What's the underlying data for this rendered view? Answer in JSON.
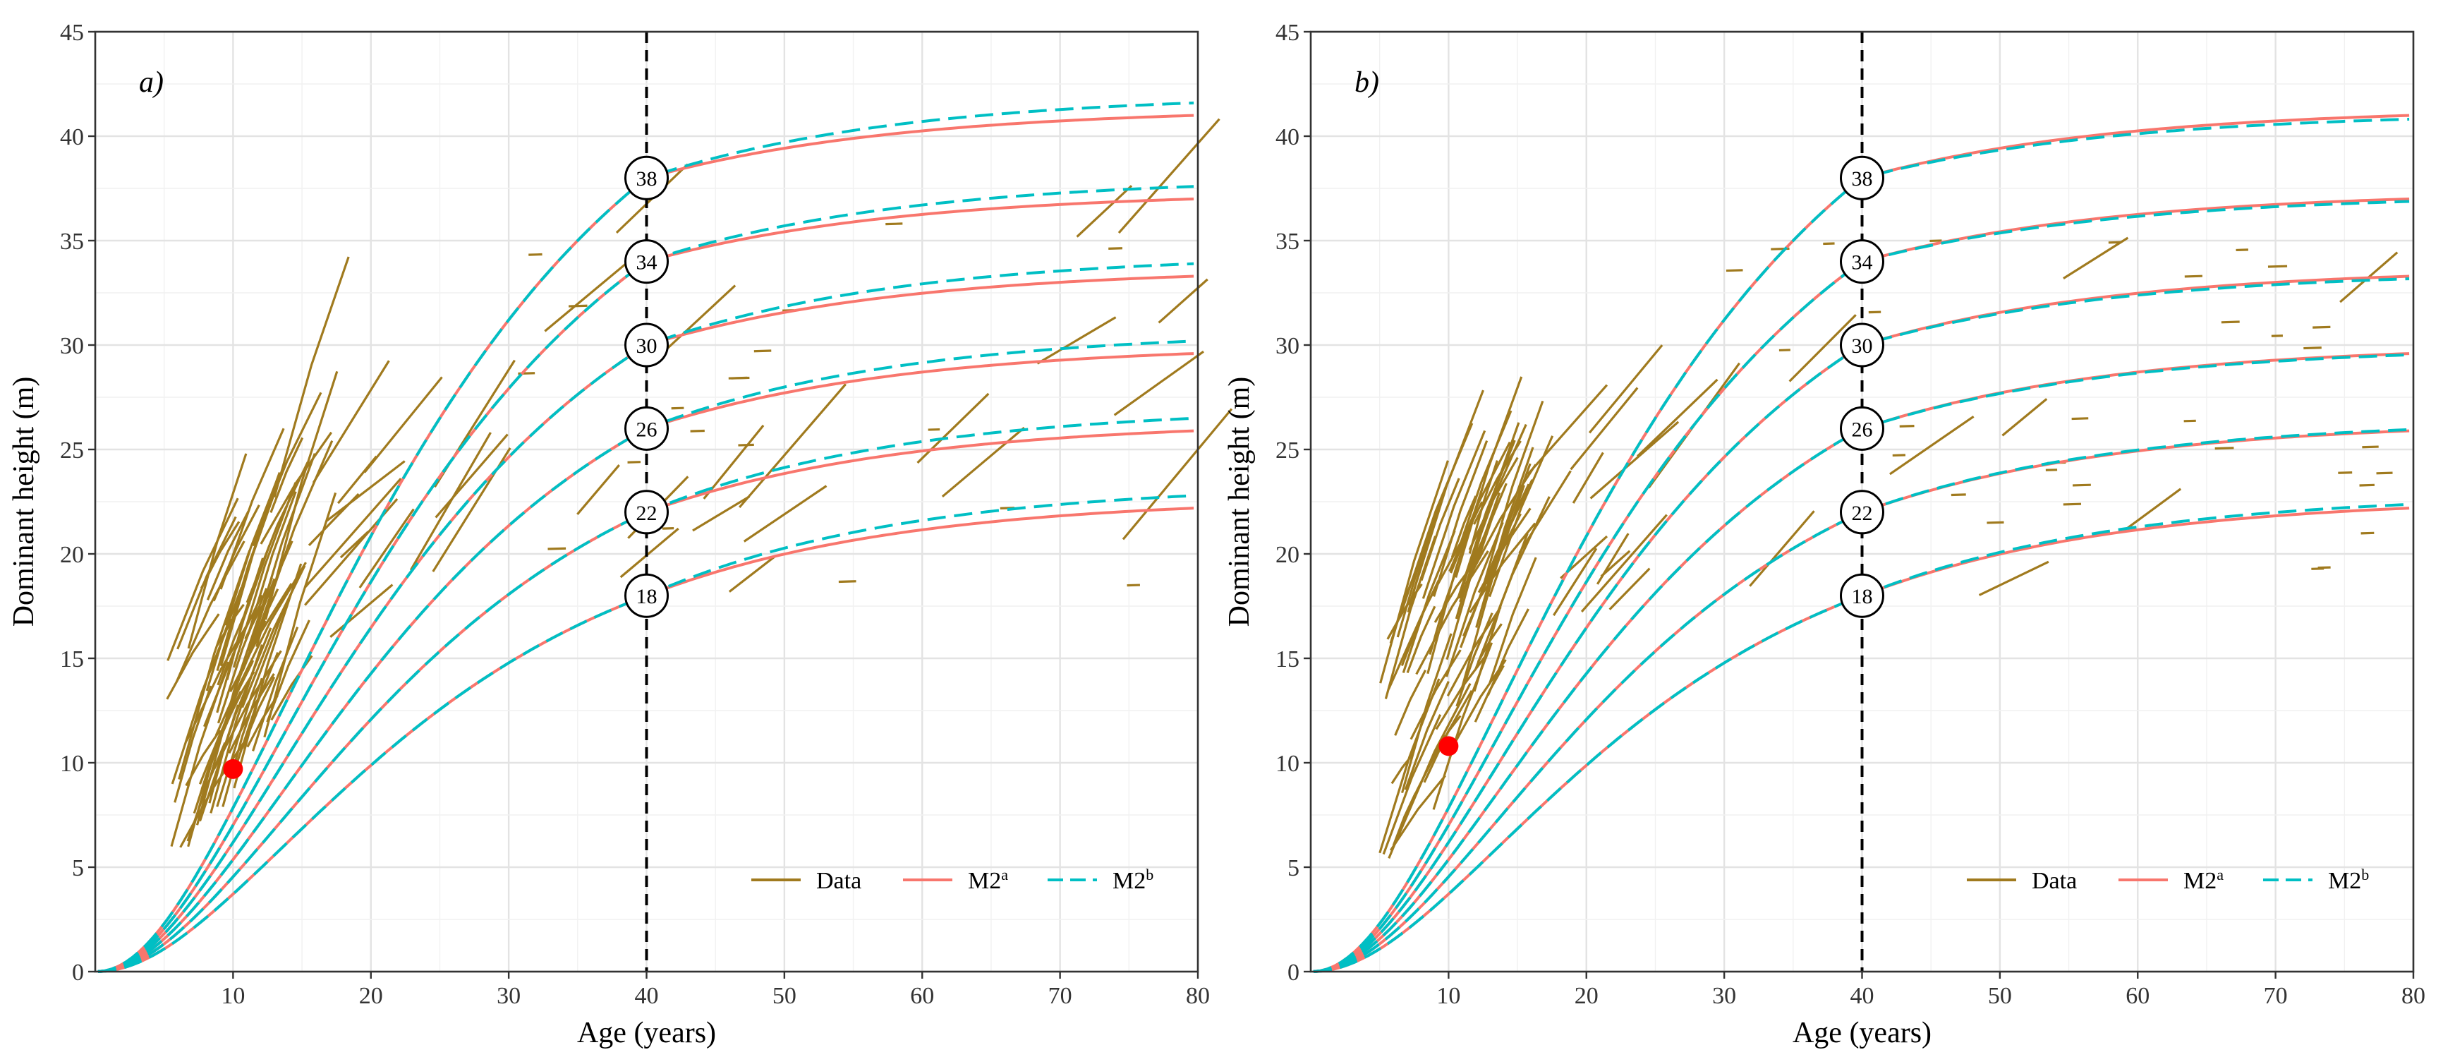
{
  "chart_data": [
    {
      "type": "line",
      "panel_label": "a)",
      "xlabel": "Age (years)",
      "ylabel": "Dominant height (m)",
      "xlim": [
        0,
        80
      ],
      "ylim": [
        0,
        45
      ],
      "x_ticks": [
        "10",
        "20",
        "30",
        "40",
        "50",
        "60",
        "70",
        "80"
      ],
      "y_ticks": [
        "0",
        "5",
        "10",
        "15",
        "20",
        "25",
        "30",
        "35",
        "40",
        "45"
      ],
      "reference_age": 40,
      "site_index_labels": [
        "18",
        "22",
        "26",
        "30",
        "34",
        "38"
      ],
      "series": [
        {
          "name": "M2a",
          "style": "solid",
          "color": "#F8766D",
          "site_index": [
            18,
            22,
            26,
            30,
            34,
            38
          ],
          "asymptote": [
            25.0,
            28.5,
            32.0,
            35.5,
            39.0,
            43.0
          ]
        },
        {
          "name": "M2b",
          "style": "dashed",
          "color": "#00BFC4",
          "site_index": [
            18,
            22,
            26,
            30,
            34,
            38
          ],
          "asymptote": [
            26.0,
            29.5,
            33.0,
            36.5,
            40.0,
            44.0
          ]
        }
      ],
      "highlight_point": {
        "x": 10,
        "y": 9.7,
        "color": "#FF0000"
      },
      "legend": {
        "position": "bottom-right",
        "entries": [
          {
            "key": "data",
            "label": "Data",
            "color": "#A07A1E",
            "style": "solid"
          },
          {
            "key": "m2a",
            "label": "M2",
            "superscript": "a",
            "color": "#F8766D",
            "style": "solid"
          },
          {
            "key": "m2b",
            "label": "M2",
            "superscript": "b",
            "color": "#00BFC4",
            "style": "dashed"
          }
        ]
      },
      "observed_data_color": "#A07A1E"
    },
    {
      "type": "line",
      "panel_label": "b)",
      "xlabel": "Age (years)",
      "ylabel": "Dominant height (m)",
      "xlim": [
        0,
        80
      ],
      "ylim": [
        0,
        45
      ],
      "x_ticks": [
        "10",
        "20",
        "30",
        "40",
        "50",
        "60",
        "70",
        "80"
      ],
      "y_ticks": [
        "0",
        "5",
        "10",
        "15",
        "20",
        "25",
        "30",
        "35",
        "40",
        "45"
      ],
      "reference_age": 40,
      "site_index_labels": [
        "18",
        "22",
        "26",
        "30",
        "34",
        "38"
      ],
      "series": [
        {
          "name": "M2a",
          "style": "solid",
          "color": "#F8766D",
          "site_index": [
            18,
            22,
            26,
            30,
            34,
            38
          ],
          "asymptote": [
            25.0,
            28.5,
            32.0,
            35.5,
            39.0,
            43.0
          ]
        },
        {
          "name": "M2b",
          "style": "dashed",
          "color": "#00BFC4",
          "site_index": [
            18,
            22,
            26,
            30,
            34,
            38
          ],
          "asymptote": [
            25.3,
            28.6,
            31.9,
            35.3,
            38.8,
            42.7
          ]
        }
      ],
      "highlight_point": {
        "x": 10,
        "y": 10.8,
        "color": "#FF0000"
      },
      "legend": {
        "position": "bottom-right",
        "entries": [
          {
            "key": "data",
            "label": "Data",
            "color": "#A07A1E",
            "style": "solid"
          },
          {
            "key": "m2a",
            "label": "M2",
            "superscript": "a",
            "color": "#F8766D",
            "style": "solid"
          },
          {
            "key": "m2b",
            "label": "M2",
            "superscript": "b",
            "color": "#00BFC4",
            "style": "dashed"
          }
        ]
      },
      "observed_data_color": "#A07A1E"
    }
  ]
}
